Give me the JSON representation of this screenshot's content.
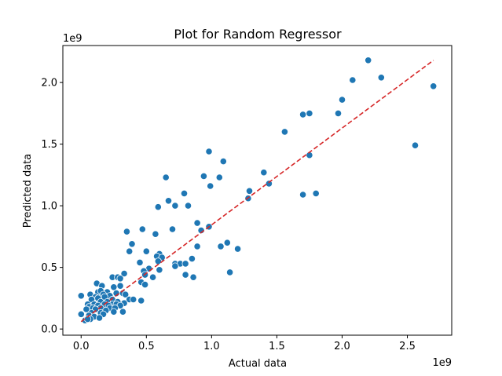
{
  "chart_data": {
    "type": "scatter",
    "title": "Plot for Random Regressor",
    "xlabel": "Actual data",
    "ylabel": "Predicted data",
    "x_offset_label": "1e9",
    "y_offset_label": "1e9",
    "xlim": [
      -0.14,
      2.84
    ],
    "ylim": [
      -0.05,
      2.3
    ],
    "x_ticks": [
      0.0,
      0.5,
      1.0,
      1.5,
      2.0,
      2.5
    ],
    "x_tick_labels": [
      "0.0",
      "0.5",
      "1.0",
      "1.5",
      "2.0",
      "2.5"
    ],
    "y_ticks": [
      0.0,
      0.5,
      1.0,
      1.5,
      2.0
    ],
    "y_tick_labels": [
      "0.0",
      "0.5",
      "1.0",
      "1.5",
      "2.0"
    ],
    "grid": false,
    "colors": {
      "points": "#1f77b4",
      "point_edge": "#ffffff",
      "reference_line": "#d62728"
    },
    "reference_line": {
      "style": "dashed",
      "x": [
        0.0,
        2.7
      ],
      "y": [
        0.06,
        2.18
      ]
    },
    "series": [
      {
        "points": [
          [
            2.2,
            2.18
          ],
          [
            2.08,
            2.02
          ],
          [
            2.3,
            2.04
          ],
          [
            2.7,
            1.97
          ],
          [
            2.0,
            1.86
          ],
          [
            1.97,
            1.75
          ],
          [
            1.7,
            1.74
          ],
          [
            1.75,
            1.75
          ],
          [
            1.56,
            1.6
          ],
          [
            2.56,
            1.49
          ],
          [
            0.98,
            1.44
          ],
          [
            1.75,
            1.41
          ],
          [
            1.09,
            1.36
          ],
          [
            1.4,
            1.27
          ],
          [
            0.94,
            1.24
          ],
          [
            1.06,
            1.23
          ],
          [
            0.65,
            1.23
          ],
          [
            1.44,
            1.18
          ],
          [
            0.99,
            1.16
          ],
          [
            1.29,
            1.12
          ],
          [
            1.28,
            1.06
          ],
          [
            0.79,
            1.1
          ],
          [
            1.8,
            1.1
          ],
          [
            1.7,
            1.09
          ],
          [
            0.67,
            1.04
          ],
          [
            0.59,
            0.99
          ],
          [
            0.72,
            1.0
          ],
          [
            0.82,
            1.0
          ],
          [
            0.89,
            0.86
          ],
          [
            0.98,
            0.83
          ],
          [
            0.92,
            0.8
          ],
          [
            0.7,
            0.81
          ],
          [
            0.47,
            0.81
          ],
          [
            0.35,
            0.79
          ],
          [
            0.57,
            0.77
          ],
          [
            1.12,
            0.7
          ],
          [
            1.07,
            0.67
          ],
          [
            0.39,
            0.69
          ],
          [
            0.5,
            0.63
          ],
          [
            0.89,
            0.67
          ],
          [
            1.2,
            0.65
          ],
          [
            0.37,
            0.63
          ],
          [
            0.6,
            0.61
          ],
          [
            0.58,
            0.59
          ],
          [
            0.62,
            0.58
          ],
          [
            0.85,
            0.57
          ],
          [
            0.59,
            0.55
          ],
          [
            0.45,
            0.54
          ],
          [
            0.72,
            0.53
          ],
          [
            0.76,
            0.53
          ],
          [
            0.8,
            0.53
          ],
          [
            0.72,
            0.51
          ],
          [
            0.52,
            0.49
          ],
          [
            0.48,
            0.47
          ],
          [
            0.6,
            0.48
          ],
          [
            1.14,
            0.46
          ],
          [
            0.8,
            0.44
          ],
          [
            0.86,
            0.42
          ],
          [
            0.33,
            0.45
          ],
          [
            0.49,
            0.44
          ],
          [
            0.55,
            0.42
          ],
          [
            0.24,
            0.42
          ],
          [
            0.28,
            0.42
          ],
          [
            0.3,
            0.41
          ],
          [
            0.46,
            0.38
          ],
          [
            0.49,
            0.36
          ],
          [
            0.12,
            0.37
          ],
          [
            0.16,
            0.35
          ],
          [
            0.3,
            0.35
          ],
          [
            0.25,
            0.34
          ],
          [
            0.13,
            0.3
          ],
          [
            0.15,
            0.31
          ],
          [
            0.2,
            0.3
          ],
          [
            0.07,
            0.28
          ],
          [
            0.0,
            0.27
          ],
          [
            0.17,
            0.28
          ],
          [
            0.27,
            0.29
          ],
          [
            0.32,
            0.29
          ],
          [
            0.34,
            0.28
          ],
          [
            0.11,
            0.26
          ],
          [
            0.22,
            0.27
          ],
          [
            0.13,
            0.25
          ],
          [
            0.18,
            0.26
          ],
          [
            0.08,
            0.24
          ],
          [
            0.24,
            0.24
          ],
          [
            0.37,
            0.24
          ],
          [
            0.4,
            0.24
          ],
          [
            0.46,
            0.23
          ],
          [
            0.15,
            0.22
          ],
          [
            0.2,
            0.22
          ],
          [
            0.28,
            0.22
          ],
          [
            0.33,
            0.21
          ],
          [
            0.05,
            0.2
          ],
          [
            0.1,
            0.2
          ],
          [
            0.18,
            0.2
          ],
          [
            0.24,
            0.2
          ],
          [
            0.27,
            0.2
          ],
          [
            0.13,
            0.19
          ],
          [
            0.21,
            0.19
          ],
          [
            0.3,
            0.19
          ],
          [
            0.06,
            0.18
          ],
          [
            0.09,
            0.17
          ],
          [
            0.15,
            0.17
          ],
          [
            0.22,
            0.17
          ],
          [
            0.26,
            0.17
          ],
          [
            0.04,
            0.16
          ],
          [
            0.11,
            0.16
          ],
          [
            0.19,
            0.15
          ],
          [
            0.25,
            0.14
          ],
          [
            0.32,
            0.14
          ],
          [
            0.0,
            0.12
          ],
          [
            0.08,
            0.13
          ],
          [
            0.15,
            0.13
          ],
          [
            0.17,
            0.12
          ],
          [
            0.06,
            0.11
          ],
          [
            0.1,
            0.1
          ],
          [
            0.14,
            0.09
          ],
          [
            0.07,
            0.08
          ],
          [
            0.03,
            0.07
          ],
          [
            0.05,
            0.08
          ]
        ]
      }
    ]
  }
}
